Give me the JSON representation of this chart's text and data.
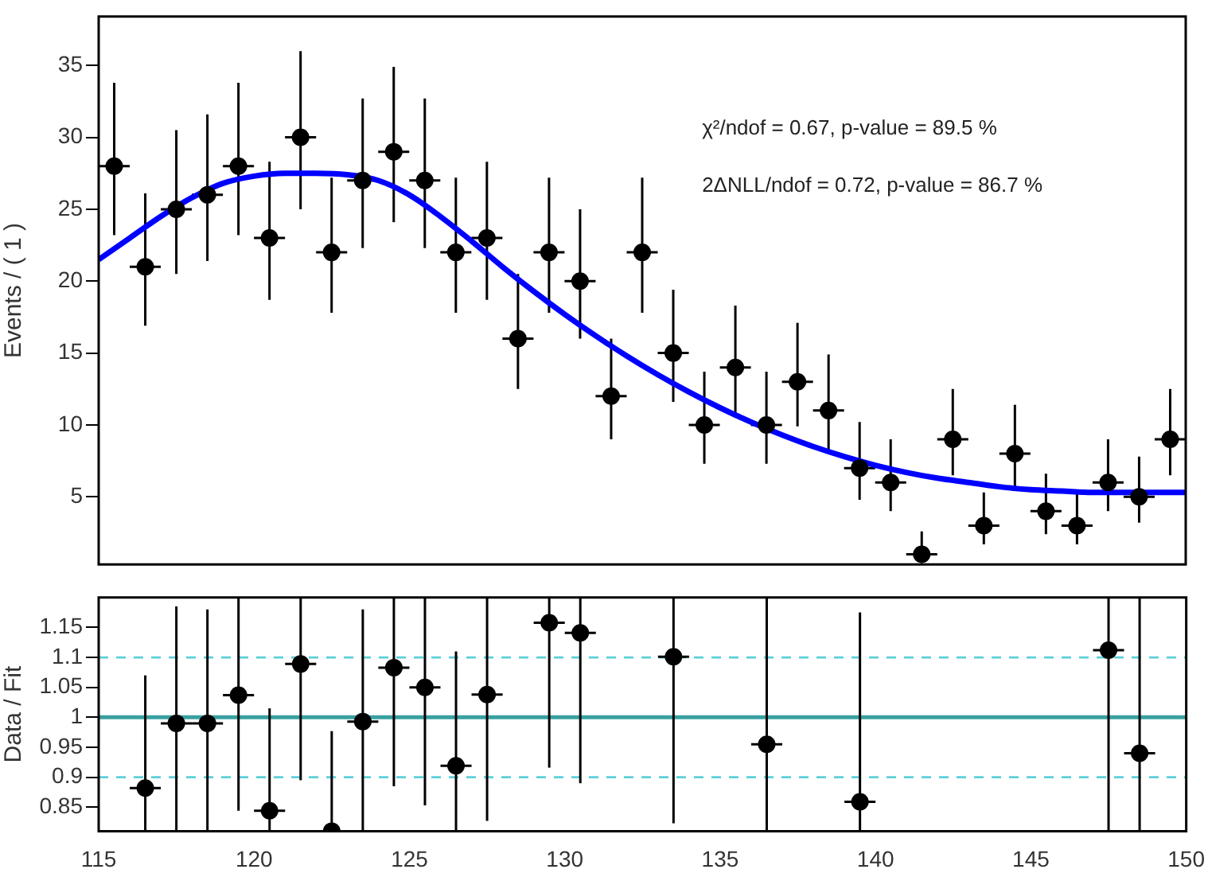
{
  "chart_data": [
    {
      "type": "scatter",
      "ylabel": "Events / ( 1 )",
      "xlim": [
        115,
        150
      ],
      "xticks": [
        115,
        120,
        125,
        130,
        135,
        140,
        145,
        150
      ],
      "ylim": [
        0.3,
        38.4
      ],
      "yticks": [
        5,
        10,
        15,
        20,
        25,
        30,
        35
      ],
      "tick_labels": "y",
      "annotations": [
        "χ²/ndof = 0.67, p-value = 89.5 %",
        "2ΔNLL/ndof = 0.72, p-value = 86.7 %"
      ],
      "series": [
        {
          "type": "scatter",
          "marker": "circle",
          "color": "#000000",
          "x": [
            115.5,
            116.5,
            117.5,
            118.5,
            119.5,
            120.5,
            121.5,
            122.5,
            123.5,
            124.5,
            125.5,
            126.5,
            127.5,
            128.5,
            129.5,
            130.5,
            131.5,
            132.5,
            133.5,
            134.5,
            135.5,
            136.5,
            137.5,
            138.5,
            139.5,
            140.5,
            141.5,
            142.5,
            143.5,
            144.5,
            145.5,
            146.5,
            147.5,
            148.5,
            149.5
          ],
          "values": [
            28,
            21,
            25,
            26,
            28,
            23,
            30,
            22,
            27,
            29,
            27,
            22,
            23,
            16,
            22,
            20,
            12,
            22,
            15,
            10,
            14,
            10,
            13,
            11,
            7,
            6,
            1,
            9,
            3,
            8,
            4,
            3,
            6,
            5,
            9
          ],
          "errors": [
            [
              23.2,
              33.8
            ],
            [
              16.9,
              26.1
            ],
            [
              20.5,
              30.5
            ],
            [
              21.4,
              31.6
            ],
            [
              23.2,
              33.8
            ],
            [
              18.7,
              28.3
            ],
            [
              25.0,
              36.0
            ],
            [
              17.8,
              27.2
            ],
            [
              22.3,
              32.7
            ],
            [
              24.1,
              34.9
            ],
            [
              22.3,
              32.7
            ],
            [
              17.8,
              27.2
            ],
            [
              18.7,
              28.3
            ],
            [
              12.5,
              20.5
            ],
            [
              17.8,
              27.2
            ],
            [
              16.0,
              25.0
            ],
            [
              9.0,
              16.0
            ],
            [
              17.8,
              27.2
            ],
            [
              11.6,
              19.4
            ],
            [
              7.3,
              13.7
            ],
            [
              10.7,
              18.3
            ],
            [
              7.3,
              13.7
            ],
            [
              9.9,
              17.1
            ],
            [
              8.1,
              14.9
            ],
            [
              4.8,
              10.2
            ],
            [
              4.0,
              9.0
            ],
            [
              0.4,
              2.6
            ],
            [
              6.5,
              12.5
            ],
            [
              1.7,
              5.3
            ],
            [
              5.6,
              11.4
            ],
            [
              2.4,
              6.6
            ],
            [
              1.7,
              5.3
            ],
            [
              4.0,
              9.0
            ],
            [
              3.2,
              7.8
            ],
            [
              6.5,
              12.5
            ]
          ],
          "xerrors": [
            0.5,
            0.5,
            0.5,
            0.5,
            0.5,
            0.5,
            0.5,
            0.5,
            0.5,
            0.5,
            0.5,
            0.5,
            0.5,
            0.5,
            0.5,
            0.5,
            0.5,
            0.5,
            0.5,
            0.5,
            0.5,
            0.5,
            0.5,
            0.5,
            0.5,
            0.5,
            0.5,
            0.5,
            0.5,
            0.5,
            0.5,
            0.5,
            0.5,
            0.5,
            0.5
          ]
        },
        {
          "type": "line",
          "marker": "none",
          "color": "#0000ff",
          "x": [
            115,
            116,
            117,
            118,
            119,
            120,
            121,
            122,
            123,
            124,
            125,
            126,
            127,
            128,
            129,
            130,
            131,
            132,
            133,
            134,
            135,
            136,
            137,
            138,
            139,
            140,
            141,
            142,
            143,
            144,
            145,
            146,
            147,
            148,
            149,
            150
          ],
          "values": [
            21.5,
            23,
            24.5,
            25.8,
            26.8,
            27.3,
            27.5,
            27.5,
            27.4,
            27,
            26,
            24.5,
            22.8,
            21,
            19.3,
            17.7,
            16.2,
            14.8,
            13.5,
            12.3,
            11.2,
            10.2,
            9.3,
            8.5,
            7.8,
            7.2,
            6.7,
            6.3,
            6,
            5.7,
            5.5,
            5.4,
            5.3,
            5.3,
            5.3,
            5.3
          ]
        }
      ]
    },
    {
      "type": "scatter",
      "ylabel": "Data / Fit",
      "xlim": [
        115,
        150
      ],
      "xticks": [
        115,
        120,
        125,
        130,
        135,
        140,
        145,
        150
      ],
      "ylim": [
        0.81,
        1.2
      ],
      "yticks": [
        0.85,
        0.9,
        0.95,
        1,
        1.05,
        1.1,
        1.15
      ],
      "marker": "circle",
      "ref_lines": [
        {
          "axis": "y",
          "value": 1,
          "color": "#3aa0a0",
          "line_style": "solid"
        },
        {
          "axis": "y",
          "value": 1.1,
          "color": "#5cd0d8",
          "line_style": "dashed"
        },
        {
          "axis": "y",
          "value": 0.9,
          "color": "#5cd0d8",
          "line_style": "dashed"
        }
      ],
      "series": [
        {
          "type": "scatter",
          "color": "#000000",
          "x": [
            116.5,
            117.5,
            118.5,
            119.5,
            120.5,
            121.5,
            122.5,
            123.5,
            124.5,
            125.5,
            126.5,
            127.5,
            129.5,
            130.5,
            133.5,
            136.5,
            139.5,
            147.5,
            148.5
          ],
          "values": [
            0.882,
            0.99,
            0.99,
            1.037,
            0.844,
            1.089,
            0.81,
            0.993,
            1.083,
            1.05,
            0.919,
            1.038,
            1.158,
            1.141,
            1.101,
            0.955,
            0.859,
            1.112,
            0.94
          ],
          "errors": [
            [
              0.81,
              1.07
            ],
            [
              0.81,
              1.185
            ],
            [
              0.81,
              1.18
            ],
            [
              0.844,
              1.2
            ],
            [
              0.81,
              1.015
            ],
            [
              0.895,
              1.2
            ],
            [
              0.81,
              0.977
            ],
            [
              0.81,
              1.18
            ],
            [
              0.885,
              1.2
            ],
            [
              0.853,
              1.2
            ],
            [
              0.81,
              1.11
            ],
            [
              0.827,
              1.2
            ],
            [
              0.916,
              1.2
            ],
            [
              0.89,
              1.2
            ],
            [
              0.823,
              1.2
            ],
            [
              0.81,
              1.2
            ],
            [
              0.81,
              1.175
            ],
            [
              0.81,
              1.2
            ],
            [
              0.81,
              1.2
            ]
          ],
          "xerrors": [
            0.5,
            0.5,
            0.5,
            0.5,
            0.5,
            0.5,
            0.5,
            0.5,
            0.5,
            0.5,
            0.5,
            0.5,
            0.5,
            0.5,
            0.5,
            0.5,
            0.5,
            0.5,
            0.5
          ]
        }
      ]
    }
  ]
}
